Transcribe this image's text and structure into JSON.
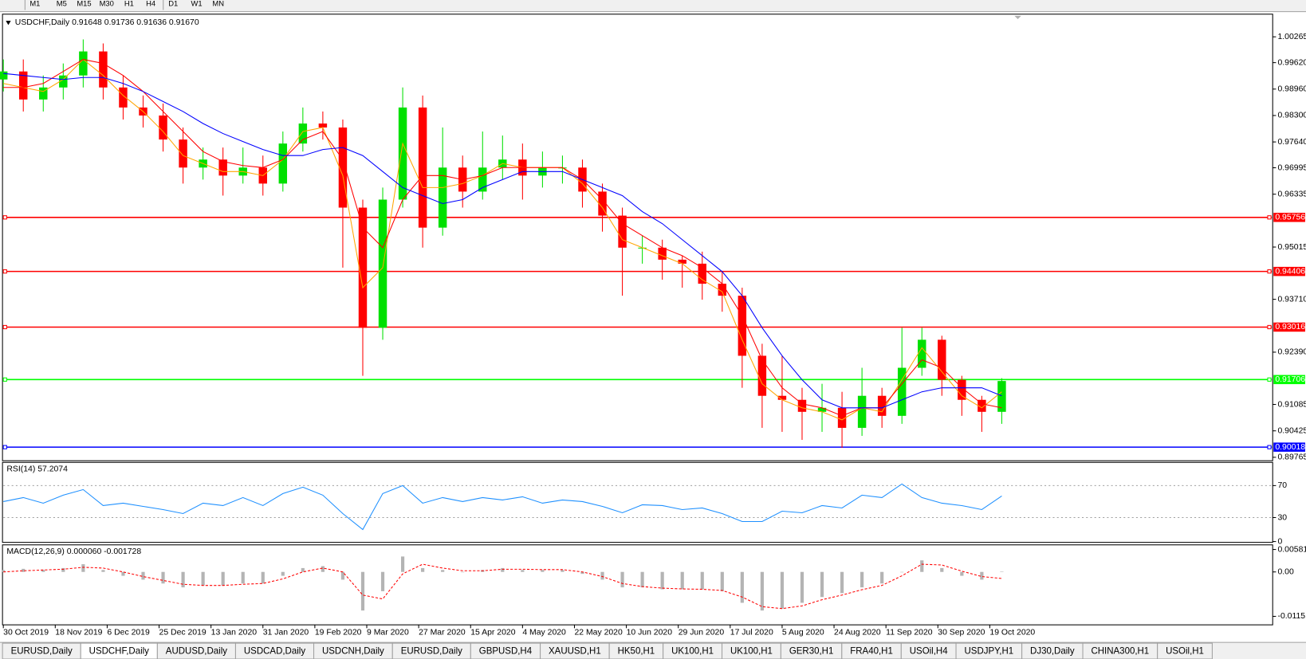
{
  "toolbar": {
    "timeframes": [
      "M1",
      "M5",
      "M15",
      "M30",
      "H1",
      "H4",
      "D1",
      "W1",
      "MN"
    ]
  },
  "chart_data": [
    {
      "type": "candlestick",
      "title": "USDCHF,Daily 0.91648 0.91736 0.91636 0.91670",
      "x": [
        0,
        5,
        10,
        15,
        20,
        25,
        30,
        35,
        40,
        45,
        50,
        55,
        60,
        65,
        70,
        75,
        80,
        85,
        90,
        95,
        100,
        105,
        110,
        115,
        120,
        125,
        130,
        135,
        140,
        145,
        150,
        155,
        160,
        165,
        170,
        175,
        180,
        185,
        190,
        195,
        200,
        205,
        210,
        215,
        220,
        225,
        230,
        235,
        240,
        245,
        250
      ],
      "open": [
        0.992,
        0.994,
        0.987,
        0.99,
        0.993,
        0.999,
        0.99,
        0.985,
        0.983,
        0.977,
        0.97,
        0.972,
        0.968,
        0.97,
        0.966,
        0.976,
        0.981,
        0.98,
        0.96,
        0.93,
        0.962,
        0.985,
        0.955,
        0.97,
        0.964,
        0.97,
        0.972,
        0.968,
        0.97,
        0.97,
        0.964,
        0.958,
        0.95,
        0.95,
        0.947,
        0.946,
        0.941,
        0.938,
        0.923,
        0.913,
        0.912,
        0.909,
        0.91,
        0.905,
        0.913,
        0.908,
        0.92,
        0.927,
        0.917,
        0.912,
        0.909
      ],
      "high": [
        0.997,
        0.997,
        0.993,
        0.996,
        1.002,
        1.001,
        0.993,
        0.988,
        0.986,
        0.98,
        0.975,
        0.975,
        0.975,
        0.973,
        0.979,
        0.985,
        0.984,
        0.982,
        0.962,
        0.965,
        0.99,
        0.988,
        0.98,
        0.973,
        0.979,
        0.978,
        0.976,
        0.974,
        0.973,
        0.972,
        0.966,
        0.96,
        0.953,
        0.952,
        0.948,
        0.949,
        0.944,
        0.94,
        0.926,
        0.923,
        0.915,
        0.916,
        0.914,
        0.92,
        0.915,
        0.93,
        0.93,
        0.928,
        0.918,
        0.913,
        0.9174
      ],
      "low": [
        0.989,
        0.984,
        0.984,
        0.987,
        0.99,
        0.987,
        0.982,
        0.98,
        0.974,
        0.966,
        0.967,
        0.963,
        0.966,
        0.963,
        0.964,
        0.974,
        0.977,
        0.945,
        0.918,
        0.927,
        0.96,
        0.95,
        0.953,
        0.96,
        0.962,
        0.967,
        0.962,
        0.965,
        0.966,
        0.96,
        0.954,
        0.938,
        0.946,
        0.942,
        0.94,
        0.937,
        0.934,
        0.915,
        0.905,
        0.904,
        0.902,
        0.904,
        0.9,
        0.903,
        0.905,
        0.906,
        0.918,
        0.913,
        0.908,
        0.904,
        0.906
      ],
      "close": [
        0.994,
        0.987,
        0.99,
        0.993,
        0.999,
        0.99,
        0.985,
        0.983,
        0.977,
        0.97,
        0.972,
        0.968,
        0.97,
        0.966,
        0.976,
        0.981,
        0.98,
        0.96,
        0.93,
        0.962,
        0.985,
        0.955,
        0.97,
        0.964,
        0.97,
        0.972,
        0.968,
        0.97,
        0.97,
        0.964,
        0.958,
        0.95,
        0.95,
        0.947,
        0.946,
        0.941,
        0.938,
        0.923,
        0.913,
        0.912,
        0.909,
        0.91,
        0.905,
        0.913,
        0.908,
        0.92,
        0.927,
        0.917,
        0.912,
        0.909,
        0.9167
      ],
      "up_color": "#00e000",
      "down_color": "#ff0000",
      "moving_averages": [
        {
          "color": "#ffa500",
          "values": [
            0.991,
            0.99,
            0.989,
            0.992,
            0.997,
            0.993,
            0.988,
            0.984,
            0.979,
            0.973,
            0.971,
            0.969,
            0.969,
            0.968,
            0.972,
            0.979,
            0.98,
            0.968,
            0.94,
            0.945,
            0.976,
            0.965,
            0.965,
            0.966,
            0.968,
            0.971,
            0.97,
            0.97,
            0.97,
            0.966,
            0.96,
            0.952,
            0.95,
            0.948,
            0.946,
            0.942,
            0.939,
            0.927,
            0.916,
            0.912,
            0.91,
            0.909,
            0.907,
            0.91,
            0.909,
            0.917,
            0.925,
            0.919,
            0.913,
            0.91,
            0.914
          ]
        },
        {
          "color": "#ff0000",
          "values": [
            0.99,
            0.99,
            0.991,
            0.994,
            0.997,
            0.996,
            0.993,
            0.989,
            0.984,
            0.979,
            0.974,
            0.9715,
            0.9705,
            0.97,
            0.972,
            0.977,
            0.979,
            0.972,
            0.955,
            0.95,
            0.962,
            0.968,
            0.968,
            0.967,
            0.968,
            0.97,
            0.97,
            0.97,
            0.97,
            0.967,
            0.962,
            0.956,
            0.953,
            0.95,
            0.948,
            0.945,
            0.941,
            0.933,
            0.922,
            0.915,
            0.911,
            0.91,
            0.908,
            0.91,
            0.91,
            0.916,
            0.922,
            0.92,
            0.915,
            0.911,
            0.91
          ]
        },
        {
          "color": "#0000ff",
          "values": [
            0.9935,
            0.993,
            0.9925,
            0.992,
            0.9925,
            0.9925,
            0.991,
            0.989,
            0.9865,
            0.984,
            0.981,
            0.9785,
            0.9765,
            0.9745,
            0.973,
            0.973,
            0.9745,
            0.975,
            0.973,
            0.969,
            0.965,
            0.963,
            0.961,
            0.962,
            0.965,
            0.967,
            0.969,
            0.969,
            0.969,
            0.967,
            0.965,
            0.963,
            0.959,
            0.956,
            0.952,
            0.948,
            0.944,
            0.938,
            0.93,
            0.923,
            0.917,
            0.912,
            0.91,
            0.91,
            0.91,
            0.912,
            0.914,
            0.915,
            0.915,
            0.915,
            0.913
          ]
        }
      ],
      "horizontal_lines": [
        {
          "value": 0.95756,
          "color": "#ff0000"
        },
        {
          "value": 0.94406,
          "color": "#ff0000"
        },
        {
          "value": 0.93016,
          "color": "#ff0000"
        },
        {
          "value": 0.91706,
          "color": "#00ff00"
        },
        {
          "value": 0.90018,
          "color": "#0000ff"
        }
      ],
      "xlim": [
        0,
        317
      ],
      "ylim": [
        0.897,
        1.0081
      ],
      "yticks": [
        1.00265,
        {
          "value": 0.9962,
          "label": "0.99620"
        },
        {
          "value": 0.9896,
          "label": "0.98960"
        },
        {
          "value": 0.983,
          "label": "0.98300"
        },
        {
          "value": 0.9764,
          "label": "0.97640"
        },
        0.96995,
        0.96335,
        0.95015,
        {
          "value": 0.9371,
          "label": "0.93710"
        },
        {
          "value": 0.9239,
          "label": "0.92390"
        },
        0.91085,
        0.90425,
        0.89765
      ],
      "xticks": [
        {
          "value": 0,
          "label": "30 Oct 2019"
        },
        {
          "value": 13,
          "label": "18 Nov 2019"
        },
        {
          "value": 26,
          "label": "6 Dec 2019"
        },
        {
          "value": 39,
          "label": "25 Dec 2019"
        },
        {
          "value": 52,
          "label": "13 Jan 2020"
        },
        {
          "value": 65,
          "label": "31 Jan 2020"
        },
        {
          "value": 78,
          "label": "19 Feb 2020"
        },
        {
          "value": 91,
          "label": "9 Mar 2020"
        },
        {
          "value": 104,
          "label": "27 Mar 2020"
        },
        {
          "value": 117,
          "label": "15 Apr 2020"
        },
        {
          "value": 130,
          "label": "4 May 2020"
        },
        {
          "value": 143,
          "label": "22 May 2020"
        },
        {
          "value": 156,
          "label": "10 Jun 2020"
        },
        {
          "value": 169,
          "label": "29 Jun 2020"
        },
        {
          "value": 182,
          "label": "17 Jul 2020"
        },
        {
          "value": 195,
          "label": "5 Aug 2020"
        },
        {
          "value": 208,
          "label": "24 Aug 2020"
        },
        {
          "value": 221,
          "label": "11 Sep 2020"
        },
        {
          "value": 234,
          "label": "30 Sep 2020"
        },
        {
          "value": 247,
          "label": "19 Oct 2020"
        }
      ]
    },
    {
      "type": "line",
      "title": "RSI(14) 57.2074",
      "color": "#1e90ff",
      "values": [
        50,
        55,
        48,
        58,
        65,
        45,
        48,
        44,
        40,
        35,
        48,
        45,
        55,
        45,
        60,
        68,
        58,
        35,
        15,
        60,
        70,
        48,
        55,
        50,
        55,
        52,
        56,
        48,
        52,
        50,
        44,
        36,
        46,
        45,
        40,
        42,
        35,
        25,
        25,
        38,
        36,
        45,
        42,
        58,
        55,
        72,
        55,
        48,
        45,
        40,
        57
      ],
      "ylim": [
        0,
        98
      ],
      "yticks": [
        0,
        30,
        70
      ],
      "grid": true
    },
    {
      "type": "macd",
      "title": "MACD(12,26,9) 0.000060 -0.001728",
      "histogram_color": "#b4b4b4",
      "signal_color": "#ff0000",
      "histogram": [
        0.0005,
        0.0008,
        0.0005,
        0.001,
        0.002,
        0.0005,
        -0.001,
        -0.002,
        -0.003,
        -0.004,
        -0.0035,
        -0.0035,
        -0.003,
        -0.003,
        -0.001,
        0.001,
        0.0015,
        -0.002,
        -0.01,
        -0.005,
        0.004,
        0.001,
        0.0005,
        0.0,
        0.0005,
        0.001,
        0.0005,
        0.0005,
        0.0005,
        -0.0005,
        -0.002,
        -0.004,
        -0.004,
        -0.0045,
        -0.0045,
        -0.0045,
        -0.005,
        -0.008,
        -0.01,
        -0.0095,
        -0.008,
        -0.0065,
        -0.0055,
        -0.004,
        -0.003,
        0.0,
        0.003,
        0.001,
        -0.001,
        -0.002,
        6e-05
      ],
      "signal": [
        0.0,
        0.0003,
        0.0005,
        0.0007,
        0.0012,
        0.001,
        0.0,
        -0.0012,
        -0.0022,
        -0.0032,
        -0.0035,
        -0.0035,
        -0.0032,
        -0.003,
        -0.0018,
        0.0,
        0.001,
        0.0,
        -0.006,
        -0.007,
        -0.0005,
        0.002,
        0.001,
        0.0003,
        0.0003,
        0.0007,
        0.0007,
        0.0006,
        0.0006,
        0.0,
        -0.0012,
        -0.003,
        -0.0038,
        -0.0042,
        -0.0044,
        -0.0045,
        -0.0048,
        -0.0065,
        -0.009,
        -0.0095,
        -0.0088,
        -0.0072,
        -0.006,
        -0.0046,
        -0.0035,
        -0.001,
        0.002,
        0.0018,
        0.0002,
        -0.0012,
        -0.0017
      ],
      "ylim": [
        -0.0135,
        0.0068
      ],
      "yticks": [
        0.005818,
        {
          "value": 0,
          "label": "0.00"
        },
        -0.011514
      ]
    }
  ],
  "tabs": {
    "items": [
      "EURUSD,Daily",
      "USDCHF,Daily",
      "AUDUSD,Daily",
      "USDCAD,Daily",
      "USDCNH,Daily",
      "EURUSD,Daily",
      "GBPUSD,H4",
      "XAUUSD,H1",
      "HK50,H1",
      "UK100,H1",
      "UK100,H1",
      "GER30,H1",
      "FRA40,H1",
      "USOil,H4",
      "USDJPY,H1",
      "DJ30,Daily",
      "CHINA300,H1",
      "USOil,H1"
    ],
    "active": 1
  }
}
